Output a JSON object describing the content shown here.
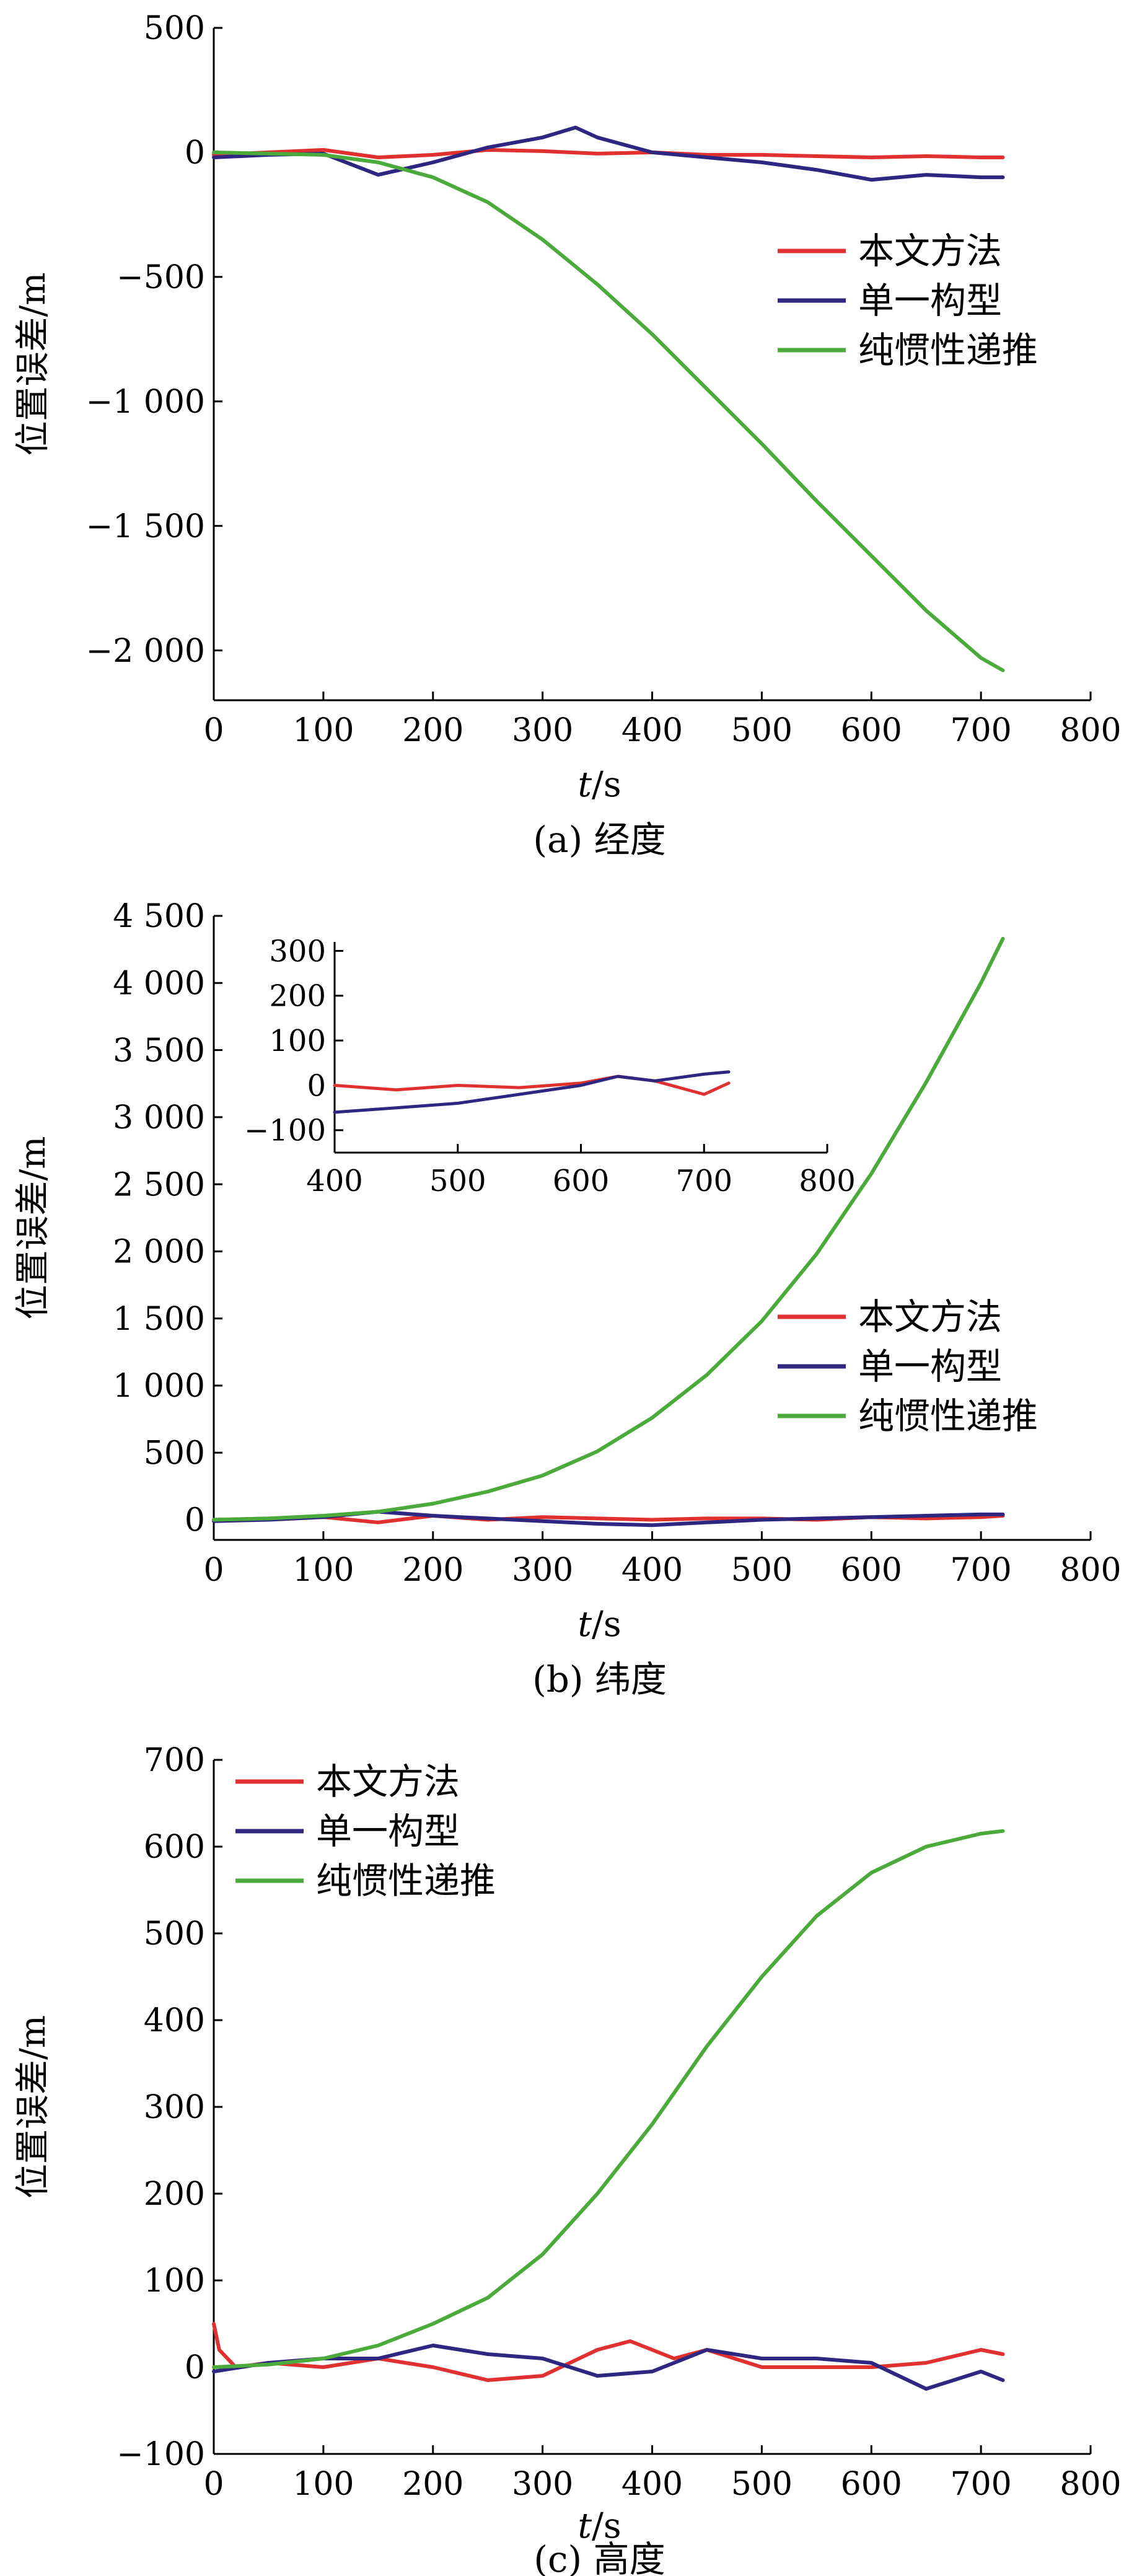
{
  "figure": {
    "panels": [
      {
        "caption": "(a) 经度",
        "ylabel": "位置误差/m",
        "xlabel": "t/s"
      },
      {
        "caption": "(b) 纬度",
        "ylabel": "位置误差/m",
        "xlabel": "t/s"
      },
      {
        "caption": "(c) 高度",
        "ylabel": "位置误差/m",
        "xlabel": "t/s"
      }
    ]
  },
  "colors": {
    "series_1": "#e03030",
    "series_2": "#2e2680",
    "series_3": "#4aaa3a",
    "axis": "#000000"
  },
  "chart_data": [
    {
      "type": "line",
      "title": "(a) 经度",
      "xlabel": "t/s",
      "ylabel": "位置误差/m",
      "xlim": [
        0,
        800
      ],
      "ylim": [
        -2200,
        500
      ],
      "xticks": [
        0,
        100,
        200,
        300,
        400,
        500,
        600,
        700,
        800
      ],
      "yticks": [
        500,
        0,
        -500,
        -1000,
        -1500,
        -2000
      ],
      "ytick_labels": [
        "500",
        "0",
        "−500",
        "−1 000",
        "−1 500",
        "−2 000"
      ],
      "legend": "right",
      "series": [
        {
          "name": "本文方法",
          "color": "#e03030",
          "x": [
            0,
            50,
            100,
            150,
            200,
            250,
            300,
            350,
            400,
            450,
            500,
            550,
            600,
            650,
            700,
            720
          ],
          "y": [
            -10,
            0,
            10,
            -20,
            -10,
            10,
            5,
            -5,
            0,
            -10,
            -10,
            -15,
            -20,
            -15,
            -20,
            -20
          ]
        },
        {
          "name": "单一构型",
          "color": "#2e2680",
          "x": [
            0,
            50,
            100,
            150,
            200,
            250,
            300,
            330,
            350,
            400,
            450,
            500,
            550,
            600,
            650,
            700,
            720
          ],
          "y": [
            -20,
            -10,
            -5,
            -90,
            -40,
            20,
            60,
            100,
            60,
            0,
            -20,
            -40,
            -70,
            -110,
            -90,
            -100,
            -100
          ]
        },
        {
          "name": "纯惯性递推",
          "color": "#4aaa3a",
          "x": [
            0,
            50,
            100,
            150,
            200,
            250,
            300,
            350,
            400,
            450,
            500,
            550,
            600,
            650,
            700,
            720
          ],
          "y": [
            0,
            -5,
            -10,
            -40,
            -100,
            -200,
            -350,
            -530,
            -730,
            -950,
            -1170,
            -1400,
            -1620,
            -1840,
            -2030,
            -2080
          ]
        }
      ]
    },
    {
      "type": "line",
      "title": "(b) 纬度",
      "xlabel": "t/s",
      "ylabel": "位置误差/m",
      "xlim": [
        0,
        800
      ],
      "ylim": [
        -150,
        4500
      ],
      "xticks": [
        0,
        100,
        200,
        300,
        400,
        500,
        600,
        700,
        800
      ],
      "yticks": [
        4500,
        4000,
        3500,
        3000,
        2500,
        2000,
        1500,
        1000,
        500,
        0
      ],
      "ytick_labels": [
        "4 500",
        "4 000",
        "3 500",
        "3 000",
        "2 500",
        "2 000",
        "1 500",
        "1 000",
        "500",
        "0"
      ],
      "legend": "right",
      "series": [
        {
          "name": "本文方法",
          "color": "#e03030",
          "x": [
            0,
            50,
            100,
            150,
            200,
            250,
            300,
            350,
            400,
            450,
            500,
            550,
            600,
            650,
            700,
            720
          ],
          "y": [
            0,
            10,
            20,
            -20,
            30,
            0,
            20,
            10,
            0,
            10,
            10,
            0,
            20,
            10,
            20,
            30
          ]
        },
        {
          "name": "单一构型",
          "color": "#2e2680",
          "x": [
            0,
            50,
            100,
            150,
            200,
            250,
            300,
            350,
            400,
            450,
            500,
            550,
            600,
            650,
            700,
            720
          ],
          "y": [
            -10,
            0,
            20,
            60,
            30,
            10,
            -10,
            -30,
            -40,
            -20,
            0,
            10,
            20,
            30,
            40,
            40
          ]
        },
        {
          "name": "纯惯性递推",
          "color": "#4aaa3a",
          "x": [
            0,
            50,
            100,
            150,
            200,
            250,
            300,
            350,
            400,
            450,
            500,
            550,
            600,
            650,
            700,
            720
          ],
          "y": [
            0,
            10,
            30,
            60,
            120,
            210,
            330,
            510,
            760,
            1080,
            1480,
            1980,
            2580,
            3260,
            4000,
            4330
          ]
        }
      ],
      "inset": {
        "xlim": [
          400,
          800
        ],
        "ylim": [
          -150,
          320
        ],
        "xticks": [
          400,
          500,
          600,
          700,
          800
        ],
        "yticks": [
          300,
          200,
          100,
          0,
          -100
        ],
        "ytick_labels": [
          "300",
          "200",
          "100",
          "0",
          "−100"
        ],
        "series": [
          {
            "name": "本文方法",
            "color": "#e03030",
            "x": [
              400,
              450,
              500,
              550,
              600,
              630,
              660,
              700,
              720
            ],
            "y": [
              0,
              -10,
              0,
              -5,
              5,
              20,
              10,
              -20,
              5
            ]
          },
          {
            "name": "单一构型",
            "color": "#2e2680",
            "x": [
              400,
              450,
              500,
              550,
              600,
              630,
              660,
              700,
              720
            ],
            "y": [
              -60,
              -50,
              -40,
              -20,
              0,
              20,
              10,
              25,
              30
            ]
          }
        ]
      }
    },
    {
      "type": "line",
      "title": "(c) 高度",
      "xlabel": "t/s",
      "ylabel": "位置误差/m",
      "xlim": [
        0,
        800
      ],
      "ylim": [
        -100,
        700
      ],
      "xticks": [
        0,
        100,
        200,
        300,
        400,
        500,
        600,
        700,
        800
      ],
      "yticks": [
        700,
        600,
        500,
        400,
        300,
        200,
        100,
        0,
        -100
      ],
      "ytick_labels": [
        "700",
        "600",
        "500",
        "400",
        "300",
        "200",
        "100",
        "0",
        "−100"
      ],
      "legend": "top-left",
      "series": [
        {
          "name": "本文方法",
          "color": "#e03030",
          "x": [
            0,
            5,
            20,
            50,
            100,
            150,
            200,
            250,
            300,
            350,
            380,
            420,
            450,
            500,
            550,
            600,
            650,
            700,
            720
          ],
          "y": [
            50,
            20,
            0,
            5,
            0,
            10,
            0,
            -15,
            -10,
            20,
            30,
            10,
            20,
            0,
            0,
            0,
            5,
            20,
            15
          ]
        },
        {
          "name": "单一构型",
          "color": "#2e2680",
          "x": [
            0,
            50,
            100,
            150,
            200,
            250,
            300,
            350,
            400,
            450,
            500,
            550,
            600,
            650,
            700,
            720
          ],
          "y": [
            -5,
            5,
            10,
            10,
            25,
            15,
            10,
            -10,
            -5,
            20,
            10,
            10,
            5,
            -25,
            -5,
            -15
          ]
        },
        {
          "name": "纯惯性递推",
          "color": "#4aaa3a",
          "x": [
            0,
            50,
            100,
            150,
            200,
            250,
            300,
            350,
            400,
            450,
            500,
            550,
            600,
            650,
            700,
            720
          ],
          "y": [
            0,
            3,
            10,
            25,
            50,
            80,
            130,
            200,
            280,
            370,
            450,
            520,
            570,
            600,
            615,
            618
          ]
        }
      ]
    }
  ]
}
